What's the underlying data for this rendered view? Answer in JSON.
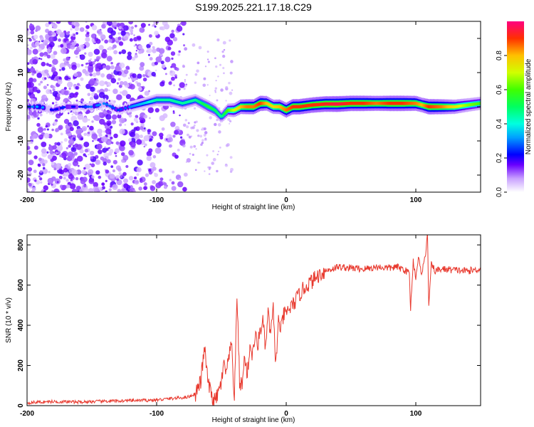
{
  "title": "S199.2025.221.17.18.C29",
  "chart_data": [
    {
      "type": "heatmap",
      "name": "spectrogram",
      "xlabel": "Height of straight line (km)",
      "ylabel": "Frequency (Hz)",
      "xlim": [
        -200,
        150
      ],
      "ylim": [
        -25,
        25
      ],
      "xticks": [
        -200,
        -100,
        0,
        100
      ],
      "yticks": [
        -20,
        -10,
        0,
        10,
        20
      ],
      "colorbar": {
        "label": "Normalized spectral amplitude",
        "range": [
          0,
          1
        ],
        "ticks": [
          0.0,
          0.2,
          0.4,
          0.6,
          0.8
        ]
      },
      "ridge": {
        "x": [
          -200,
          -190,
          -180,
          -170,
          -160,
          -150,
          -140,
          -130,
          -120,
          -110,
          -100,
          -90,
          -80,
          -70,
          -65,
          -60,
          -55,
          -50,
          -45,
          -40,
          -35,
          -30,
          -25,
          -20,
          -15,
          -10,
          -5,
          0,
          5,
          10,
          20,
          30,
          40,
          50,
          60,
          70,
          80,
          90,
          100,
          105,
          110,
          120,
          130,
          140,
          150
        ],
        "frequency": [
          0,
          0,
          -1,
          0,
          0,
          0,
          1,
          -1,
          0,
          1,
          2,
          2,
          1,
          2,
          1,
          0,
          -1,
          -3,
          -1,
          -1,
          0,
          0,
          0,
          1,
          1,
          0,
          0,
          -1,
          0,
          0,
          0.5,
          0.8,
          0.8,
          1,
          1,
          1,
          1,
          1,
          1,
          0.5,
          0,
          0,
          0,
          0.5,
          1
        ],
        "amplitude": [
          0.25,
          0.35,
          0.2,
          0.25,
          0.2,
          0.3,
          0.3,
          0.25,
          0.3,
          0.35,
          0.45,
          0.45,
          0.45,
          0.45,
          0.5,
          0.55,
          0.5,
          0.45,
          0.6,
          0.7,
          0.8,
          0.85,
          0.85,
          0.9,
          0.8,
          0.75,
          0.8,
          0.85,
          0.9,
          0.9,
          0.9,
          0.92,
          0.95,
          0.9,
          0.9,
          0.85,
          0.9,
          0.9,
          0.85,
          0.8,
          0.9,
          0.85,
          0.75,
          0.65,
          0.6
        ]
      }
    },
    {
      "type": "line",
      "name": "snr",
      "xlabel": "Height of straight line (km)",
      "ylabel": "SNR (10 * v/v)",
      "xlim": [
        -200,
        150
      ],
      "ylim": [
        0,
        850
      ],
      "xticks": [
        -200,
        -100,
        0,
        100
      ],
      "yticks": [
        0,
        200,
        400,
        600,
        800
      ],
      "color": "#e8392e",
      "series": [
        {
          "name": "SNR",
          "x": [
            -200,
            -180,
            -160,
            -140,
            -120,
            -100,
            -90,
            -80,
            -75,
            -70,
            -66,
            -63,
            -61,
            -59,
            -57,
            -55,
            -52,
            -50,
            -48,
            -46,
            -44,
            -42,
            -40,
            -38,
            -36,
            -34,
            -32,
            -30,
            -28,
            -26,
            -24,
            -22,
            -20,
            -18,
            -16,
            -14,
            -12,
            -10,
            -8,
            -6,
            -4,
            -2,
            0,
            2,
            5,
            8,
            12,
            16,
            20,
            25,
            30,
            35,
            40,
            50,
            60,
            70,
            80,
            85,
            90,
            95,
            96,
            98,
            100,
            102,
            104,
            106,
            108,
            109,
            110,
            112,
            115,
            120,
            130,
            140,
            150
          ],
          "y": [
            15,
            20,
            18,
            22,
            25,
            28,
            35,
            40,
            45,
            60,
            120,
            290,
            150,
            80,
            40,
            20,
            70,
            120,
            200,
            160,
            250,
            300,
            20,
            560,
            120,
            100,
            250,
            150,
            300,
            250,
            350,
            300,
            380,
            420,
            280,
            460,
            350,
            480,
            200,
            420,
            380,
            450,
            460,
            480,
            500,
            530,
            570,
            600,
            620,
            650,
            670,
            680,
            690,
            685,
            680,
            690,
            685,
            690,
            680,
            660,
            480,
            720,
            640,
            740,
            660,
            700,
            780,
            850,
            500,
            700,
            670,
            680,
            675,
            670,
            680
          ]
        }
      ]
    }
  ]
}
